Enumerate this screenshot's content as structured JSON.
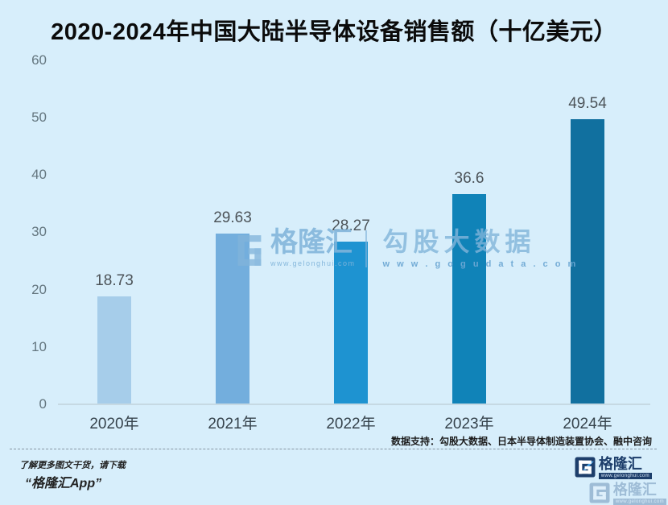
{
  "title": "2020-2024年中国大陆半导体设备销售额（十亿美元）",
  "chart_data": {
    "type": "bar",
    "title": "2020-2024年中国大陆半导体设备销售额（十亿美元）",
    "categories": [
      "2020年",
      "2021年",
      "2022年",
      "2023年",
      "2024年"
    ],
    "values": [
      18.73,
      29.63,
      28.27,
      36.6,
      49.54
    ],
    "value_labels": [
      "18.73",
      "29.63",
      "28.27",
      "36.6",
      "49.54"
    ],
    "xlabel": "",
    "ylabel": "",
    "ylim": [
      0,
      60
    ],
    "yticks": [
      0,
      10,
      20,
      30,
      40,
      50,
      60
    ],
    "grid": false,
    "legend": "none",
    "bar_colors": [
      "#a6cdea",
      "#73aedd",
      "#1e93d1",
      "#1083b8",
      "#11709f"
    ]
  },
  "watermark": {
    "brand": "格隆汇",
    "brand_url": "www.gelonghui.com",
    "data_brand": "勾股大数据",
    "data_url": "w w w . g o g u d a t a . c o m"
  },
  "footer": {
    "data_support": "数据支持：勾股大数据、日本半导体制造装置协会、融中咨询",
    "promo_line1": "了解更多图文干货，请下载",
    "promo_line2": "“格隆汇App”",
    "logo_text": "格隆汇",
    "logo_url": "www.gelonghui.com"
  },
  "colors": {
    "background": "#d7eefb",
    "axis": "#c6d9e3",
    "brand_navy": "#1d3e6b",
    "watermark_blue": "#81b4da"
  }
}
